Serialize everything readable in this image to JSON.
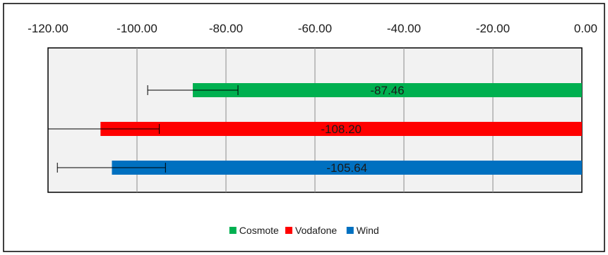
{
  "chart_data": {
    "type": "bar",
    "orientation": "horizontal",
    "title": "",
    "xlabel": "",
    "ylabel": "",
    "xlim": [
      -120,
      0
    ],
    "x_ticks": [
      -120,
      -100,
      -80,
      -60,
      -40,
      -20,
      0
    ],
    "x_tick_labels": [
      "-120.00",
      "-100.00",
      "-80.00",
      "-60.00",
      "-40.00",
      "-20.00",
      "0.00"
    ],
    "x_axis_position": "top",
    "grid": true,
    "legend_position": "bottom",
    "series": [
      {
        "name": "Cosmote",
        "value": -87.46,
        "label": "-87.46",
        "color": "#00b050",
        "error_low": -97.6,
        "error_high": -77.3
      },
      {
        "name": "Vodafone",
        "value": -108.2,
        "label": "-108.20",
        "color": "#ff0000",
        "error_low": -120.0,
        "error_high": -95.0
      },
      {
        "name": "Wind",
        "value": -105.64,
        "label": "-105.64",
        "color": "#0070c0",
        "error_low": -117.9,
        "error_high": -93.6
      }
    ]
  }
}
